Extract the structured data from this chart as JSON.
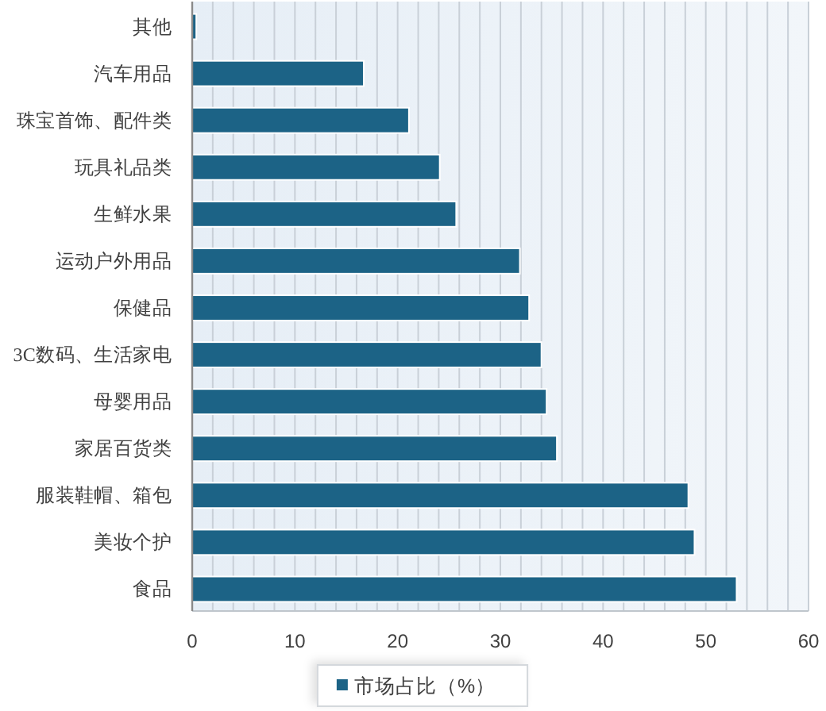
{
  "chart_data": {
    "type": "bar",
    "orientation": "horizontal",
    "categories": [
      "其他",
      "汽车用品",
      "珠宝首饰、配件类",
      "玩具礼品类",
      "生鲜水果",
      "运动户外用品",
      "保健品",
      "3C数码、生活家电",
      "母婴用品",
      "家居百货类",
      "服装鞋帽、箱包",
      "美妆个护",
      "食品"
    ],
    "series": [
      {
        "name": "市场占比（%）",
        "color": "#1c6386",
        "values": [
          0.4,
          16.7,
          21.1,
          24.1,
          25.7,
          31.9,
          32.8,
          34.0,
          34.5,
          35.5,
          48.3,
          48.9,
          53
        ]
      }
    ],
    "xlim": [
      0,
      60
    ],
    "xticks": [
      0,
      {
        "value": 2,
        "label": null
      },
      {
        "value": 4,
        "label": null
      },
      {
        "value": 6,
        "label": null
      },
      {
        "value": 8,
        "label": null
      },
      10,
      {
        "value": 12,
        "label": null
      },
      {
        "value": 14,
        "label": null
      },
      {
        "value": 16,
        "label": null
      },
      {
        "value": 18,
        "label": null
      },
      20,
      {
        "value": 22,
        "label": null
      },
      {
        "value": 24,
        "label": null
      },
      {
        "value": 26,
        "label": null
      },
      {
        "value": 28,
        "label": null
      },
      30,
      {
        "value": 32,
        "label": null
      },
      {
        "value": 34,
        "label": null
      },
      {
        "value": 36,
        "label": null
      },
      {
        "value": 38,
        "label": null
      },
      40,
      {
        "value": 42,
        "label": null
      },
      {
        "value": 44,
        "label": null
      },
      {
        "value": 46,
        "label": null
      },
      {
        "value": 48,
        "label": null
      },
      50,
      {
        "value": 52,
        "label": null
      },
      {
        "value": 54,
        "label": null
      },
      {
        "value": 56,
        "label": null
      },
      {
        "value": 58,
        "label": null
      },
      60
    ],
    "grid": "x",
    "legend": "bottom"
  }
}
